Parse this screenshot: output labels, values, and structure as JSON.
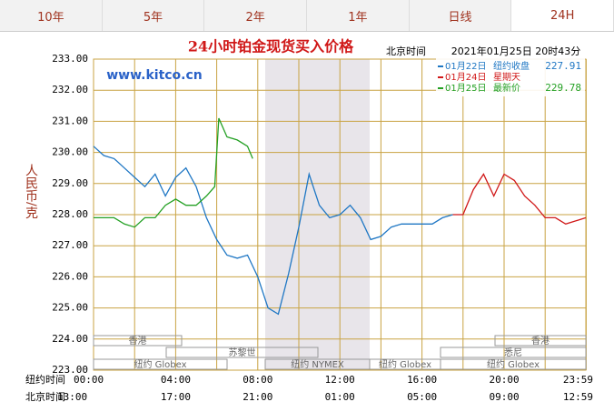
{
  "tabs": [
    "10年",
    "5年",
    "2年",
    "1年",
    "日线",
    "24H"
  ],
  "chart_data": {
    "type": "line",
    "title": "24小时铂金现货买入价格",
    "time_zone_label": "北京时间",
    "timestamp": "2021年01月25日 20时43分",
    "watermark": "www.kitco.cn",
    "ylabel": "人民币/克",
    "x_row_labels": [
      "纽约时间",
      "北京时间"
    ],
    "sessions": [
      "香港",
      "苏黎世",
      "纽约 Globex",
      "纽约 NYMEX",
      "纽约 Globex",
      "香港",
      "悉尼",
      "纽约 Globex"
    ],
    "ylim": [
      223,
      233
    ],
    "yticks": [
      {
        "value": 223,
        "label": "223.00"
      },
      {
        "value": 224,
        "label": "224.00"
      },
      {
        "value": 225,
        "label": "225.00"
      },
      {
        "value": 226,
        "label": "226.00"
      },
      {
        "value": 227,
        "label": "227.00"
      },
      {
        "value": 228,
        "label": "228.00"
      },
      {
        "value": 229,
        "label": "229.00"
      },
      {
        "value": 230,
        "label": "230.00"
      },
      {
        "value": 231,
        "label": "231.00"
      },
      {
        "value": 232,
        "label": "232.00"
      },
      {
        "value": 233,
        "label": "233.00"
      }
    ],
    "xlim": [
      0,
      23.98
    ],
    "xticks": [
      {
        "value": 0,
        "label": "00:00"
      },
      {
        "value": 4,
        "label": "04:00"
      },
      {
        "value": 8,
        "label": "08:00"
      },
      {
        "value": 12,
        "label": "12:00"
      },
      {
        "value": 16,
        "label": "16:00"
      },
      {
        "value": 20,
        "label": "20:00"
      },
      {
        "value": 23.98,
        "label": "23:59"
      }
    ],
    "x2ticks": [
      {
        "value": 0,
        "label": "13:00"
      },
      {
        "value": 4,
        "label": "17:00"
      },
      {
        "value": 8,
        "label": "21:00"
      },
      {
        "value": 12,
        "label": "01:00"
      },
      {
        "value": 16,
        "label": "05:00"
      },
      {
        "value": 20,
        "label": "09:00"
      },
      {
        "value": 23.98,
        "label": "12:59"
      }
    ],
    "grid": true,
    "series": [
      {
        "name": "01月22日",
        "note": "纽约收盘",
        "last": 227.91,
        "color": "#1f77c4",
        "x": [
          0,
          0.5,
          1,
          1.5,
          2,
          2.5,
          3,
          3.5,
          4,
          4.5,
          5,
          5.5,
          6,
          6.5,
          7,
          7.5,
          8,
          8.5,
          9,
          9.5,
          10,
          10.5,
          11,
          11.5,
          12,
          12.5,
          13,
          13.5,
          14,
          14.5,
          15,
          15.5,
          16,
          16.5,
          17,
          17.5
        ],
        "values": [
          230.2,
          229.9,
          229.8,
          229.5,
          229.2,
          228.9,
          229.3,
          228.6,
          229.2,
          229.5,
          228.9,
          227.9,
          227.2,
          226.7,
          226.6,
          226.7,
          226.0,
          225.0,
          224.8,
          226.1,
          227.6,
          229.3,
          228.3,
          227.9,
          228.0,
          228.3,
          227.9,
          227.2,
          227.3,
          227.6,
          227.7,
          227.7,
          227.7,
          227.7,
          227.9,
          228.0
        ]
      },
      {
        "name": "01月24日",
        "note": "星期天",
        "color": "#d01818",
        "x": [
          17.5,
          18,
          18.5,
          19,
          19.5,
          20,
          20.5,
          21,
          21.5,
          22,
          22.5,
          23,
          23.5,
          23.98
        ],
        "values": [
          228.0,
          228.0,
          228.8,
          229.3,
          228.6,
          229.3,
          229.1,
          228.6,
          228.3,
          227.9,
          227.9,
          227.7,
          227.8,
          227.9
        ]
      },
      {
        "name": "01月25日",
        "note": "最新价",
        "last": 229.78,
        "color": "#23a023",
        "x": [
          0,
          0.5,
          1,
          1.5,
          2,
          2.5,
          3,
          3.5,
          4,
          4.5,
          5,
          5.5,
          5.9,
          6.1,
          6.5,
          7,
          7.5,
          7.75
        ],
        "values": [
          227.9,
          227.9,
          227.9,
          227.7,
          227.6,
          227.9,
          227.9,
          228.3,
          228.5,
          228.3,
          228.3,
          228.6,
          228.9,
          231.1,
          230.5,
          230.4,
          230.2,
          229.8
        ]
      }
    ]
  }
}
